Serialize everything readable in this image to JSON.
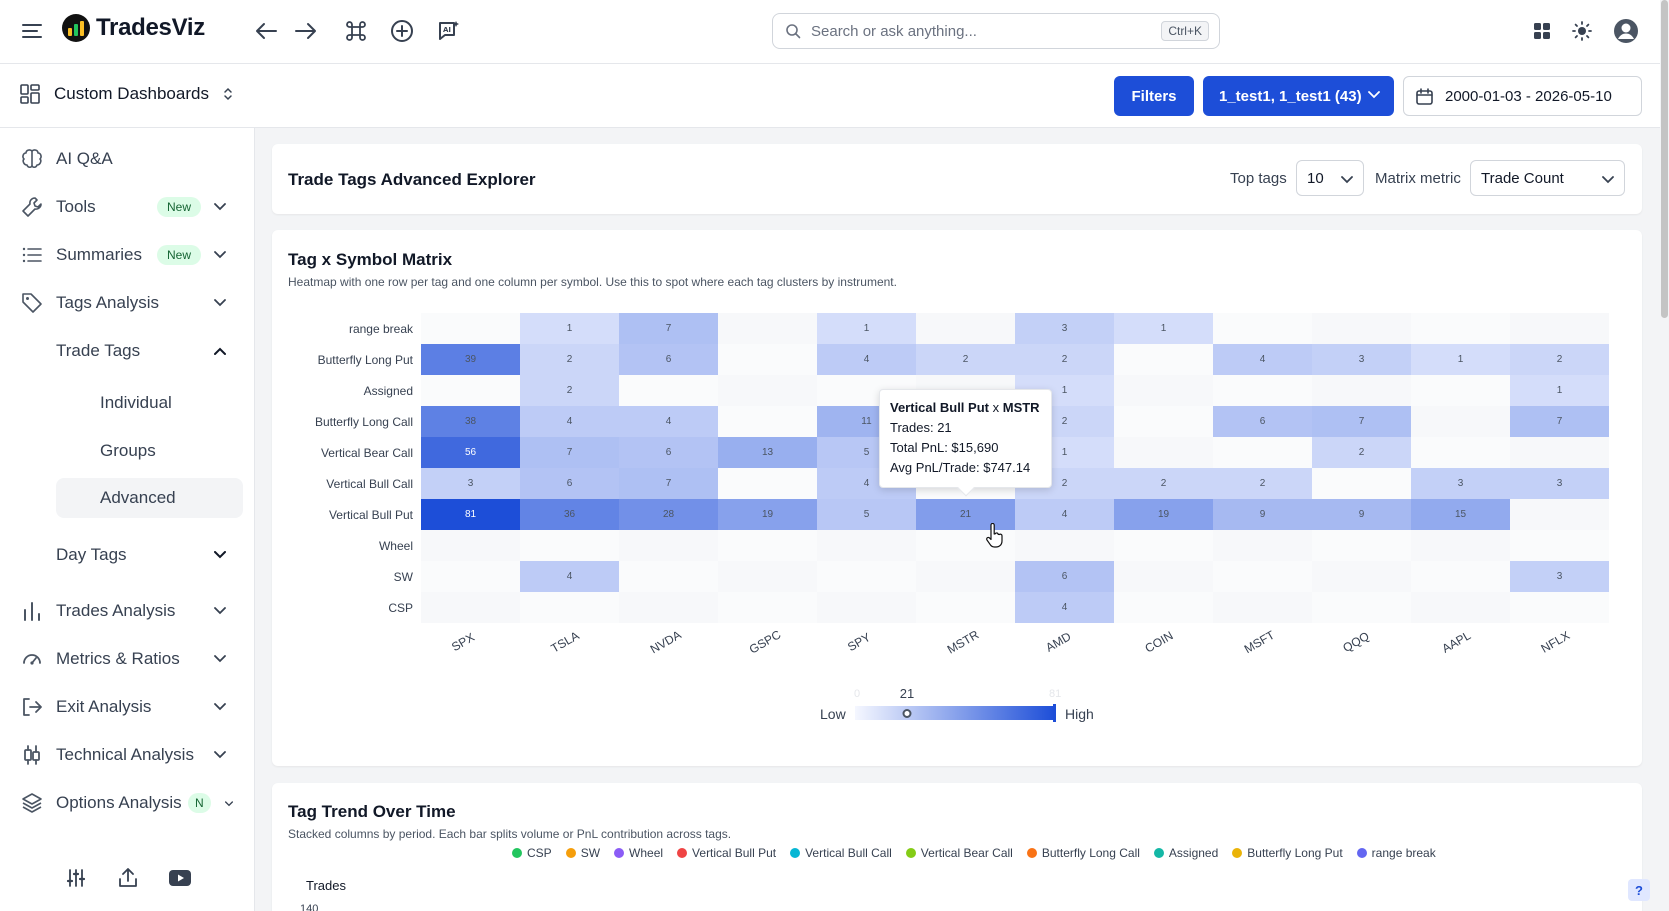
{
  "app": {
    "name": "TradesViz"
  },
  "search": {
    "placeholder": "Search or ask anything...",
    "shortcut": "Ctrl+K"
  },
  "subbar": {
    "dashboard_label": "Custom Dashboards",
    "filters_label": "Filters",
    "accounts_label": "1_test1, 1_test1 (43)",
    "date_range": "2000-01-03 - 2026-05-10"
  },
  "sidebar": {
    "ai_qa": "AI Q&A",
    "tools": "Tools",
    "summaries": "Summaries",
    "new_badge": "New",
    "tags_analysis": "Tags Analysis",
    "trade_tags": "Trade Tags",
    "individual": "Individual",
    "groups": "Groups",
    "advanced": "Advanced",
    "day_tags": "Day Tags",
    "trades_analysis": "Trades Analysis",
    "metrics_ratios": "Metrics & Ratios",
    "exit_analysis": "Exit Analysis",
    "technical_analysis": "Technical Analysis",
    "options_analysis": "Options Analysis",
    "n_badge": "N"
  },
  "explorer": {
    "title": "Trade Tags Advanced Explorer",
    "top_tags_label": "Top tags",
    "top_tags_value": "10",
    "matrix_metric_label": "Matrix metric",
    "matrix_metric_value": "Trade Count"
  },
  "matrix": {
    "title": "Tag x Symbol Matrix",
    "subtitle": "Heatmap with one row per tag and one column per symbol. Use this to spot where each tag clusters by instrument.",
    "legend_low": "Low",
    "legend_high": "High",
    "legend_min": "0",
    "legend_max": "81",
    "legend_current": "21",
    "legend_current_fraction": 0.26,
    "tooltip": {
      "tag": "Vertical Bull Put",
      "sep": "x",
      "symbol": "MSTR",
      "trades": "Trades: 21",
      "total_pnl": "Total PnL: $15,690",
      "avg_pnl": "Avg PnL/Trade: $747.14"
    }
  },
  "chart_data": {
    "type": "heatmap",
    "title": "Tag x Symbol Matrix",
    "rows": [
      "range break",
      "Butterfly Long Put",
      "Assigned",
      "Butterfly Long Call",
      "Vertical Bear Call",
      "Vertical Bull Call",
      "Vertical Bull Put",
      "Wheel",
      "SW",
      "CSP"
    ],
    "columns": [
      "SPX",
      "TSLA",
      "NVDA",
      "GSPC",
      "SPY",
      "MSTR",
      "AMD",
      "COIN",
      "MSFT",
      "QQQ",
      "AAPL",
      "NFLX"
    ],
    "values": [
      [
        null,
        1,
        7,
        null,
        1,
        null,
        3,
        1,
        null,
        null,
        null,
        null
      ],
      [
        39,
        2,
        6,
        null,
        4,
        2,
        2,
        null,
        4,
        3,
        1,
        2
      ],
      [
        null,
        2,
        null,
        null,
        null,
        null,
        1,
        null,
        null,
        null,
        null,
        1
      ],
      [
        38,
        4,
        4,
        null,
        11,
        null,
        2,
        null,
        6,
        7,
        null,
        7
      ],
      [
        56,
        7,
        6,
        13,
        5,
        null,
        1,
        null,
        null,
        2,
        null,
        null
      ],
      [
        3,
        6,
        7,
        null,
        4,
        null,
        2,
        2,
        2,
        null,
        3,
        3
      ],
      [
        81,
        36,
        28,
        19,
        5,
        21,
        4,
        19,
        9,
        9,
        15,
        null
      ],
      [
        null,
        null,
        null,
        null,
        null,
        null,
        null,
        null,
        null,
        null,
        null,
        null
      ],
      [
        null,
        4,
        null,
        null,
        null,
        null,
        6,
        null,
        null,
        null,
        null,
        3
      ],
      [
        null,
        null,
        null,
        null,
        null,
        null,
        4,
        null,
        null,
        null,
        null,
        null
      ]
    ],
    "vmin": 0,
    "vmax": 81
  },
  "trend": {
    "title": "Tag Trend Over Time",
    "subtitle": "Stacked columns by period. Each bar splits volume or PnL contribution across tags.",
    "y_label": "Trades",
    "y_tick_top": "140",
    "legend": [
      {
        "name": "CSP",
        "color": "#22c55e"
      },
      {
        "name": "SW",
        "color": "#f59e0b"
      },
      {
        "name": "Wheel",
        "color": "#8b5cf6"
      },
      {
        "name": "Vertical Bull Put",
        "color": "#ef4444"
      },
      {
        "name": "Vertical Bull Call",
        "color": "#06b6d4"
      },
      {
        "name": "Vertical Bear Call",
        "color": "#84cc16"
      },
      {
        "name": "Butterfly Long Call",
        "color": "#f97316"
      },
      {
        "name": "Assigned",
        "color": "#14b8a6"
      },
      {
        "name": "Butterfly Long Put",
        "color": "#eab308"
      },
      {
        "name": "range break",
        "color": "#6366f1"
      }
    ]
  }
}
